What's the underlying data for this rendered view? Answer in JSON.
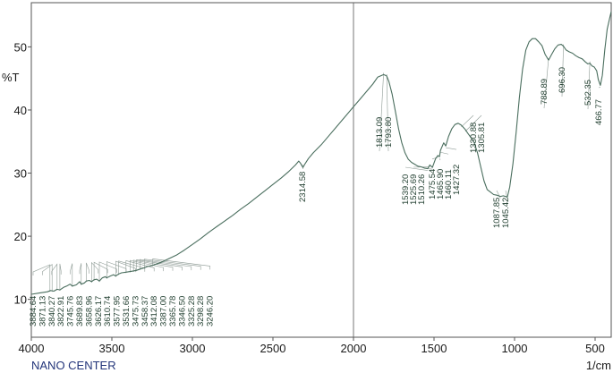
{
  "chart_data": {
    "type": "line",
    "ylabel": "%T",
    "xlabel": "1/cm",
    "footer": "NANO CENTER",
    "xlim": [
      4000,
      400
    ],
    "ylim": [
      4,
      57
    ],
    "x_ticks": [
      "4000",
      "3500",
      "3000",
      "2500",
      "2000",
      "1500",
      "1000",
      "500"
    ],
    "y_ticks": [
      "10",
      "20",
      "30",
      "40",
      "50"
    ],
    "colors": {
      "line": "#4a6e5e",
      "axis": "#555555",
      "label": "#1f3d2e",
      "footer": "#23357a"
    },
    "series": [
      {
        "x": [
          4000,
          3950,
          3900,
          3880,
          3860,
          3840,
          3822,
          3800,
          3780,
          3760,
          3745,
          3720,
          3700,
          3690,
          3670,
          3659,
          3640,
          3626,
          3611,
          3595,
          3578,
          3560,
          3540,
          3532,
          3510,
          3490,
          3476,
          3459,
          3440,
          3412,
          3387,
          3366,
          3346,
          3325,
          3298,
          3280,
          3246,
          3200,
          3150,
          3100,
          3050,
          3000,
          2950,
          2900,
          2850,
          2800,
          2750,
          2700,
          2650,
          2600,
          2550,
          2500,
          2450,
          2400,
          2360,
          2340,
          2330,
          2314,
          2300,
          2280,
          2250,
          2200,
          2150,
          2100,
          2050,
          2000,
          1960,
          1920,
          1880,
          1850,
          1813,
          1794,
          1780,
          1760,
          1740,
          1720,
          1700,
          1680,
          1660,
          1640,
          1620,
          1600,
          1580,
          1560,
          1539,
          1526,
          1510,
          1500,
          1490,
          1476,
          1466,
          1460,
          1440,
          1427,
          1410,
          1390,
          1370,
          1350,
          1331,
          1320,
          1306,
          1290,
          1270,
          1250,
          1230,
          1210,
          1190,
          1170,
          1150,
          1130,
          1110,
          1088,
          1070,
          1045,
          1030,
          1010,
          990,
          970,
          950,
          930,
          910,
          890,
          870,
          850,
          830,
          810,
          789,
          770,
          750,
          730,
          710,
          696,
          680,
          660,
          640,
          620,
          600,
          580,
          560,
          545,
          532,
          520,
          505,
          490,
          480,
          467,
          455,
          440,
          425,
          410,
          400
        ],
        "y": [
          10.8,
          11.0,
          11.2,
          11.4,
          11.3,
          11.6,
          11.5,
          11.9,
          12.1,
          12.4,
          12.1,
          12.3,
          12.8,
          12.4,
          12.6,
          12.9,
          13.0,
          12.8,
          13.1,
          13.2,
          12.9,
          13.4,
          13.6,
          13.4,
          13.7,
          13.9,
          13.7,
          14.0,
          14.2,
          14.3,
          14.4,
          14.5,
          14.6,
          14.8,
          15.0,
          15.2,
          15.4,
          15.8,
          16.4,
          17.0,
          17.8,
          18.7,
          19.6,
          20.6,
          21.5,
          22.4,
          23.3,
          24.3,
          25.2,
          26.2,
          27.2,
          28.2,
          29.2,
          30.3,
          31.3,
          31.9,
          31.6,
          30.9,
          31.5,
          32.3,
          33.2,
          34.5,
          36.0,
          37.5,
          39.0,
          40.5,
          41.7,
          42.9,
          44.1,
          45.2,
          45.6,
          45.4,
          44.5,
          42.5,
          39.8,
          37.0,
          34.8,
          33.2,
          32.2,
          31.7,
          31.4,
          31.1,
          31.0,
          30.8,
          30.7,
          31.3,
          30.9,
          31.6,
          32.3,
          32.8,
          32.6,
          33.6,
          34.8,
          34.3,
          35.8,
          37.0,
          37.7,
          37.9,
          37.6,
          37.3,
          36.9,
          36.3,
          35.6,
          34.8,
          33.2,
          31.0,
          28.8,
          27.4,
          27.0,
          26.6,
          26.5,
          26.3,
          26.4,
          26.2,
          27.8,
          31.5,
          36.5,
          42.0,
          46.5,
          49.5,
          50.8,
          51.3,
          51.3,
          50.8,
          50.2,
          48.8,
          47.9,
          48.8,
          49.7,
          50.3,
          50.4,
          50.1,
          49.5,
          49.2,
          49.0,
          48.6,
          48.3,
          48.1,
          47.6,
          47.3,
          47.4,
          47.0,
          46.8,
          46.2,
          44.8,
          43.9,
          45.5,
          49.5,
          52.8,
          54.5,
          55.6
        ]
      }
    ],
    "annotations": [
      {
        "label": "3884.64",
        "x": 3884.64
      },
      {
        "label": "3871.13",
        "x": 3871.13
      },
      {
        "label": "3840.27",
        "x": 3840.27
      },
      {
        "label": "3822.91",
        "x": 3822.91
      },
      {
        "label": "3745.76",
        "x": 3745.76
      },
      {
        "label": "3689.83",
        "x": 3689.83
      },
      {
        "label": "3658.96",
        "x": 3658.96
      },
      {
        "label": "3626.17",
        "x": 3626.17
      },
      {
        "label": "3610.74",
        "x": 3610.74
      },
      {
        "label": "3577.95",
        "x": 3577.95
      },
      {
        "label": "3531.66",
        "x": 3531.66
      },
      {
        "label": "3475.73",
        "x": 3475.73
      },
      {
        "label": "3458.37",
        "x": 3458.37
      },
      {
        "label": "3412.08",
        "x": 3412.08
      },
      {
        "label": "3387.00",
        "x": 3387.0
      },
      {
        "label": "3365.78",
        "x": 3365.78
      },
      {
        "label": "3346.50",
        "x": 3346.5
      },
      {
        "label": "3325.28",
        "x": 3325.28
      },
      {
        "label": "3298.28",
        "x": 3298.28
      },
      {
        "label": "3246.20",
        "x": 3246.2
      },
      {
        "label": "2314.58",
        "x": 2314.58
      },
      {
        "label": "1813.09",
        "x": 1813.09
      },
      {
        "label": "1793.80",
        "x": 1793.8
      },
      {
        "label": "1539.20",
        "x": 1539.2
      },
      {
        "label": "1525.69",
        "x": 1525.69
      },
      {
        "label": "1510.26",
        "x": 1510.26
      },
      {
        "label": "1475.54",
        "x": 1475.54
      },
      {
        "label": "1465.90",
        "x": 1465.9
      },
      {
        "label": "1460.11",
        "x": 1460.11
      },
      {
        "label": "1427.32",
        "x": 1427.32
      },
      {
        "label": "1330.88",
        "x": 1330.88
      },
      {
        "label": "1305.81",
        "x": 1305.81
      },
      {
        "label": "1087.85",
        "x": 1087.85
      },
      {
        "label": "1045.42",
        "x": 1045.42
      },
      {
        "label": "788.89",
        "x": 788.89
      },
      {
        "label": "696.30",
        "x": 696.3
      },
      {
        "label": "532.35",
        "x": 532.35
      },
      {
        "label": "466.77",
        "x": 466.77
      }
    ]
  }
}
